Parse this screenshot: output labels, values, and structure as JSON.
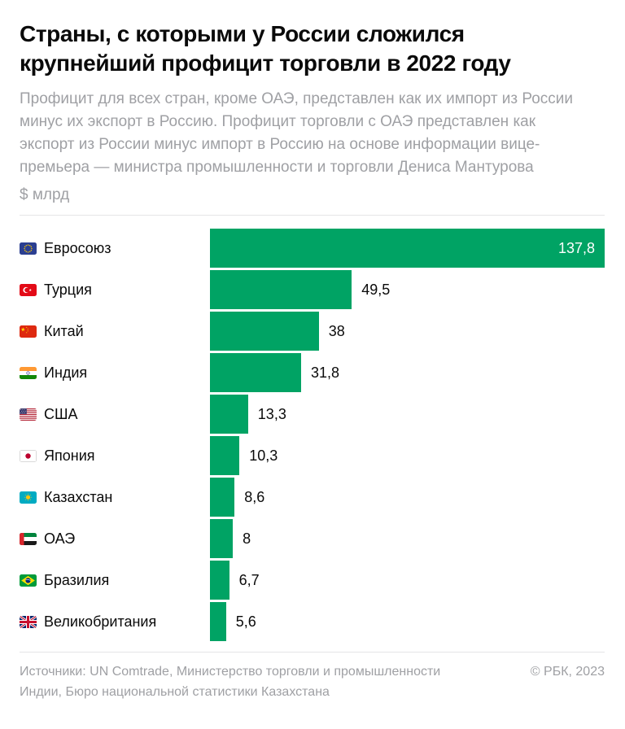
{
  "header": {
    "title": "Страны, с которыми у России сложился крупнейший профицит торговли в 2022 году",
    "title_lines": [
      "Страны, с которыми у России сложился",
      "крупнейший профицит торговли в 2022 году"
    ],
    "subtitle": "Профицит для всех стран, кроме ОАЭ, представлен как их импорт из России минус их экспорт в Россию. Профицит торговли с ОАЭ представлен как экспорт из России минус импорт в Россию на основе информации вице-премьера — министра промышленности и торговли Дениса Мантурова",
    "unit_label": "$ млрд"
  },
  "chart_data": {
    "type": "bar",
    "orientation": "horizontal",
    "title": "Страны, с которыми у России сложился крупнейший профицит торговли в 2022 году",
    "xlabel": "",
    "ylabel": "",
    "unit": "$ млрд",
    "xlim": [
      0,
      137.8
    ],
    "grid": false,
    "legend": false,
    "categories": [
      "Евросоюз",
      "Турция",
      "Китай",
      "Индия",
      "США",
      "Япония",
      "Казахстан",
      "ОАЭ",
      "Бразилия",
      "Великобритания"
    ],
    "values": [
      137.8,
      49.5,
      38,
      31.8,
      13.3,
      10.3,
      8.6,
      8,
      6.7,
      5.6
    ],
    "value_labels": [
      "137,8",
      "49,5",
      "38",
      "31,8",
      "13,3",
      "10,3",
      "8,6",
      "8",
      "6,7",
      "5,6"
    ],
    "flags": [
      "eu",
      "tr",
      "cn",
      "in",
      "us",
      "jp",
      "kz",
      "ae",
      "br",
      "gb"
    ],
    "bar_color": "#00a364"
  },
  "footer": {
    "sources": "Источники: UN Comtrade, Министерство торговли и промышленности Индии, Бюро национальной статистики Казахстана",
    "copyright": "© РБК, 2023"
  },
  "colors": {
    "bar": "#00a364",
    "title_text": "#0a0a0a",
    "muted_text": "#9fa0a4",
    "divider": "#e5e5e7",
    "value_inside": "#ffffff",
    "value_outside": "#0a0a0a"
  }
}
